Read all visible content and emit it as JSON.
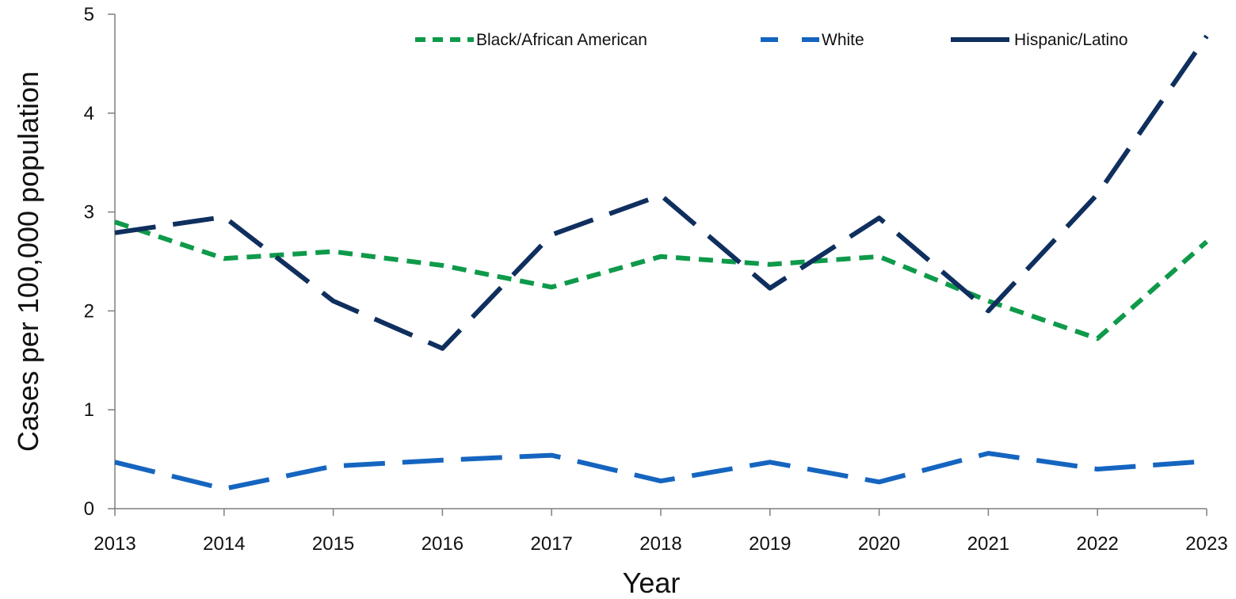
{
  "chart_data": {
    "type": "line",
    "xlabel": "Year",
    "ylabel": "Cases per 100,000 population",
    "categories": [
      "2013",
      "2014",
      "2015",
      "2016",
      "2017",
      "2018",
      "2019",
      "2020",
      "2021",
      "2022",
      "2023"
    ],
    "ylim": [
      0,
      5
    ],
    "yticks": [
      "0",
      "1",
      "2",
      "3",
      "4",
      "5"
    ],
    "grid": false,
    "legend_position": "top",
    "series": [
      {
        "name": "Black/African American",
        "color": "#0E9A4A",
        "dash": "short-dash",
        "values": [
          2.9,
          2.53,
          2.6,
          2.46,
          2.24,
          2.55,
          2.47,
          2.55,
          2.1,
          1.72,
          2.7
        ]
      },
      {
        "name": "White",
        "color": "#1565C0",
        "dash": "long-dash",
        "values": [
          0.47,
          0.2,
          0.43,
          0.49,
          0.54,
          0.28,
          0.47,
          0.27,
          0.56,
          0.4,
          0.48
        ]
      },
      {
        "name": "Hispanic/Latino",
        "color": "#0F2F5E",
        "dash": "long-dash",
        "values": [
          2.79,
          2.95,
          2.1,
          1.62,
          2.77,
          3.17,
          2.23,
          2.94,
          2.0,
          3.18,
          4.78
        ]
      }
    ]
  }
}
